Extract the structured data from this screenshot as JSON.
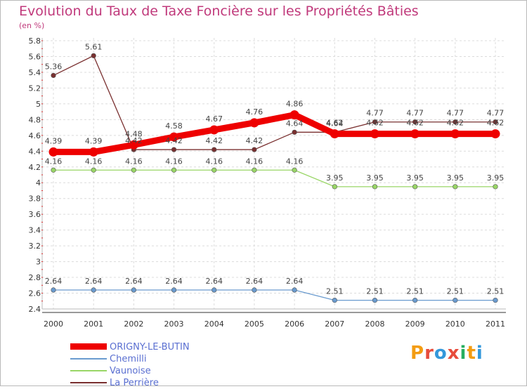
{
  "title": "Evolution du Taux de Taxe Foncière sur les Propriétés Bâties",
  "unit": "(en %)",
  "logo": {
    "text": "Proxiti",
    "letters": [
      "P",
      "r",
      "o",
      "x",
      "i",
      "t",
      "i"
    ],
    "colors": [
      "#f39c12",
      "#e74c3c",
      "#3498db",
      "#e74c3c",
      "#27ae60",
      "#f39c12",
      "#3498db"
    ]
  },
  "chart_data": {
    "type": "line",
    "title": "Evolution du Taux de Taxe Foncière sur les Propriétés Bâties",
    "ylabel": "(en %)",
    "xlabel": "",
    "categories": [
      "2000",
      "2001",
      "2002",
      "2003",
      "2004",
      "2005",
      "2006",
      "2007",
      "2008",
      "2009",
      "2010",
      "2011"
    ],
    "ylim": [
      2.4,
      5.8
    ],
    "yticks": [
      "2.4",
      "2.6",
      "2.8",
      "3",
      "3.2",
      "3.4",
      "3.6",
      "3.8",
      "4",
      "4.2",
      "4.4",
      "4.6",
      "4.8",
      "5",
      "5.2",
      "5.4",
      "5.6",
      "5.8"
    ],
    "series": [
      {
        "name": "ORIGNY-LE-BUTIN",
        "color": "#ee0000",
        "values": [
          4.39,
          4.39,
          4.48,
          4.58,
          4.67,
          4.76,
          4.86,
          4.62,
          4.62,
          4.62,
          4.62,
          4.62
        ],
        "labels": [
          "4.39",
          "4.39",
          "4.48",
          "4.58",
          "4.67",
          "4.76",
          "4.86",
          "4.62",
          "4.62",
          "4.62",
          "4.62",
          "4.62"
        ]
      },
      {
        "name": "Chemilli",
        "color": "#6a9bcf",
        "values": [
          2.64,
          2.64,
          2.64,
          2.64,
          2.64,
          2.64,
          2.64,
          2.51,
          2.51,
          2.51,
          2.51,
          2.51
        ],
        "labels": [
          "2.64",
          "2.64",
          "2.64",
          "2.64",
          "2.64",
          "2.64",
          "2.64",
          "2.51",
          "2.51",
          "2.51",
          "2.51",
          "2.51"
        ]
      },
      {
        "name": "Vaunoise",
        "color": "#99d666",
        "values": [
          4.16,
          4.16,
          4.16,
          4.16,
          4.16,
          4.16,
          4.16,
          3.95,
          3.95,
          3.95,
          3.95,
          3.95
        ],
        "labels": [
          "4.16",
          "4.16",
          "4.16",
          "4.16",
          "4.16",
          "4.16",
          "4.16",
          "3.95",
          "3.95",
          "3.95",
          "3.95",
          "3.95"
        ]
      },
      {
        "name": "La Perrière",
        "color": "#7a3030",
        "values": [
          5.36,
          5.61,
          4.42,
          4.42,
          4.42,
          4.42,
          4.64,
          4.64,
          4.77,
          4.77,
          4.77,
          4.77
        ],
        "labels": [
          "5.36",
          "5.61",
          "4.42",
          "4.42",
          "4.42",
          "4.42",
          "4.64",
          "4.64",
          "4.77",
          "4.77",
          "4.77",
          "4.77"
        ]
      }
    ],
    "legend_position": "bottom-left",
    "grid": true
  }
}
